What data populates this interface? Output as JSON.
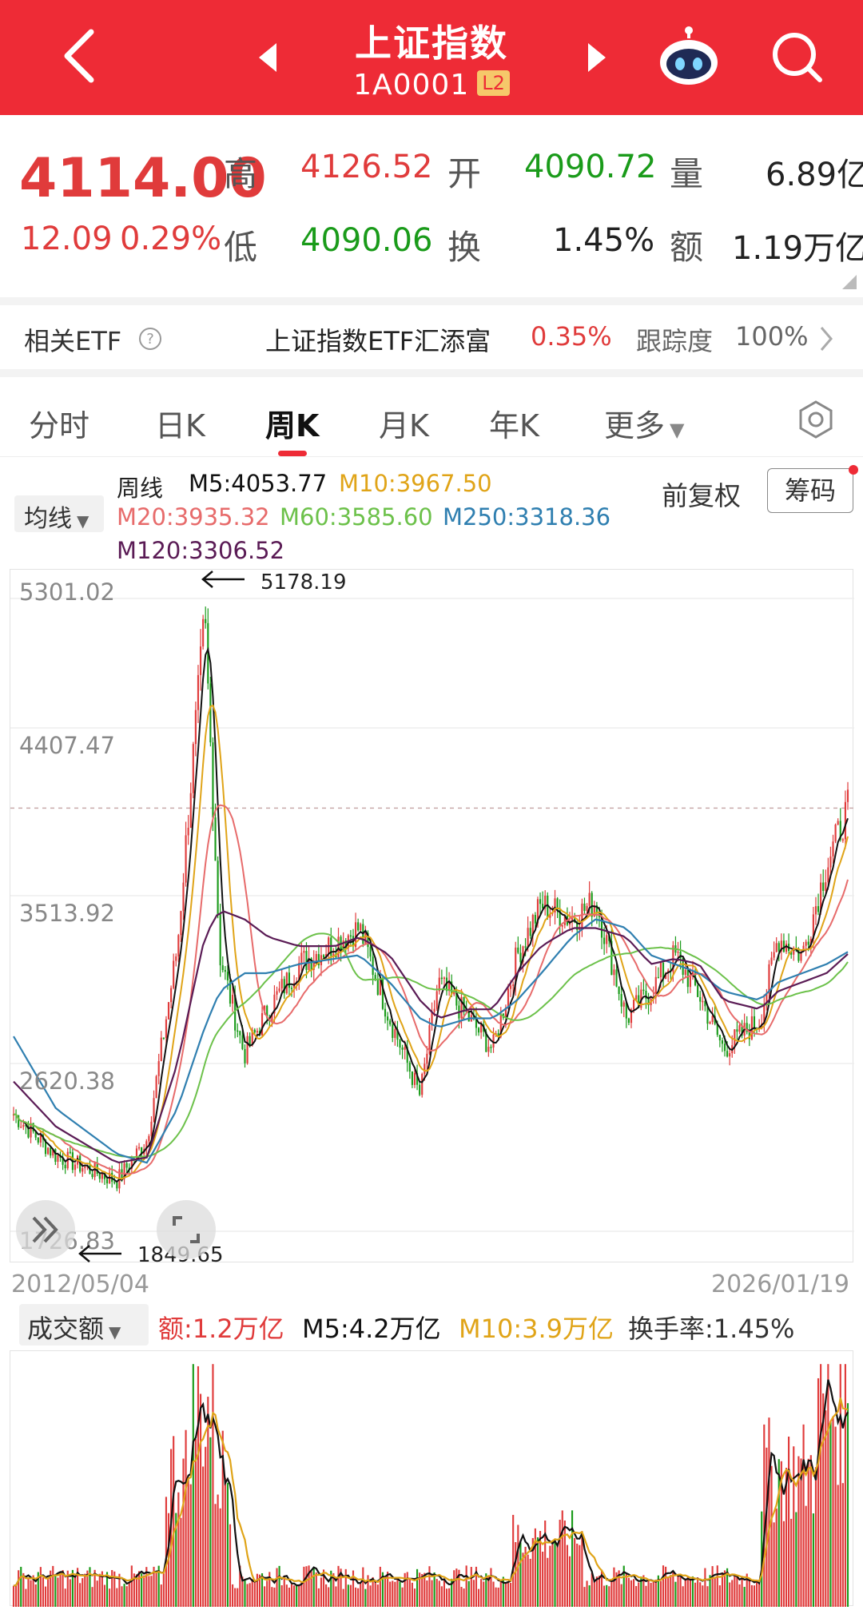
{
  "header": {
    "title": "上证指数",
    "code": "1A0001",
    "level_tag": "L2"
  },
  "quote": {
    "price": "4114.00",
    "change": "12.09",
    "change_pct": "0.29%",
    "high_label": "高",
    "high": "4126.52",
    "open_label": "开",
    "open": "4090.72",
    "vol_label": "量",
    "volume": "6.89亿",
    "low_label": "低",
    "low": "4090.06",
    "turn_label": "换",
    "turnover": "1.45%",
    "amt_label": "额",
    "amount": "1.19万亿"
  },
  "etf": {
    "label": "相关ETF",
    "name": "上证指数ETF汇添富",
    "pct": "0.35%",
    "track_label": "跟踪度",
    "track_value": "100%"
  },
  "tabs": [
    "分时",
    "日K",
    "周K",
    "月K",
    "年K",
    "更多"
  ],
  "active_tab": "周K",
  "ma_legend": {
    "selector": "均线",
    "period": "周线",
    "m5": "M5:4053.77",
    "m10": "M10:3967.50",
    "m20": "M20:3935.32",
    "m60": "M60:3585.60",
    "m250": "M250:3318.36",
    "m120": "M120:3306.52",
    "adjust": "前复权",
    "chip_btn": "筹码"
  },
  "colors": {
    "up": "#e03b3b",
    "down": "#1a9b1a",
    "m5": "#111111",
    "m10": "#e0a418",
    "m20": "#e76b6b",
    "m60": "#6cc14a",
    "m250": "#2f7fb0",
    "m120": "#5a1b55"
  },
  "chart_data": {
    "type": "line",
    "title": "",
    "xlabel": "",
    "ylabel": "",
    "x_range": [
      "2012/05/04",
      "2026/01/19"
    ],
    "y_ticks": [
      "5301.02",
      "4407.47",
      "3513.92",
      "2620.38",
      "1726.83"
    ],
    "ylim": [
      1726.83,
      5301.02
    ],
    "annotations": {
      "high": "5178.19",
      "low": "1849.65"
    },
    "x": [
      2012.3,
      2013.0,
      2014.0,
      2014.5,
      2015.0,
      2015.45,
      2015.7,
      2016.1,
      2016.5,
      2017.0,
      2017.6,
      2018.0,
      2018.5,
      2019.0,
      2019.3,
      2019.8,
      2020.2,
      2020.6,
      2021.0,
      2021.5,
      2021.9,
      2022.4,
      2022.8,
      2023.2,
      2023.6,
      2024.0,
      2024.6,
      2024.9,
      2025.3,
      2025.7,
      2026.05
    ],
    "series": [
      {
        "name": "周线",
        "values": [
          2420,
          2190,
          2050,
          2280,
          3350,
          5178,
          3300,
          2750,
          3000,
          3250,
          3370,
          3450,
          2950,
          2520,
          3150,
          2950,
          2780,
          3300,
          3580,
          3500,
          3600,
          2950,
          3100,
          3300,
          3080,
          2780,
          2940,
          3400,
          3300,
          3800,
          4114
        ]
      },
      {
        "name": "M250",
        "values": [
          2850,
          2450,
          2200,
          2150,
          2450,
          2900,
          3100,
          3200,
          3200,
          3250,
          3280,
          3300,
          3150,
          2950,
          2900,
          2950,
          2950,
          3050,
          3200,
          3400,
          3500,
          3450,
          3300,
          3250,
          3200,
          3100,
          3050,
          3150,
          3200,
          3250,
          3318
        ]
      },
      {
        "name": "M120",
        "values": [
          2600,
          2350,
          2150,
          2180,
          2700,
          3400,
          3550,
          3500,
          3400,
          3350,
          3350,
          3400,
          3300,
          3050,
          2950,
          3000,
          3000,
          3200,
          3350,
          3450,
          3450,
          3400,
          3250,
          3280,
          3250,
          3050,
          3000,
          3100,
          3150,
          3200,
          3306
        ]
      }
    ]
  },
  "volume": {
    "selector": "成交额",
    "amt": "额:1.2万亿",
    "m5": "M5:4.2万亿",
    "m10": "M10:3.9万亿",
    "turnover": "换手率:1.45%"
  }
}
